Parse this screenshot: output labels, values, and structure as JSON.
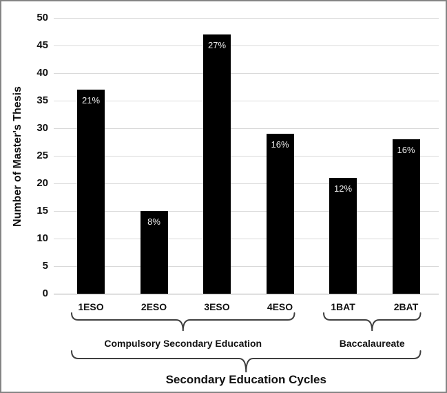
{
  "chart_data": {
    "type": "bar",
    "title": "",
    "xlabel": "",
    "ylabel": "Number of Master's Thesis",
    "ylim": [
      0,
      50
    ],
    "ytick_step": 5,
    "grid": true,
    "legend": "none",
    "bar_color": "#000000",
    "bar_label_color": "#ededed",
    "gridline_color": "#d9d9d9",
    "categories": [
      "1ESO",
      "2ESO",
      "3ESO",
      "4ESO",
      "1BAT",
      "2BAT"
    ],
    "values": [
      37,
      15,
      47,
      29,
      21,
      28
    ],
    "bar_labels": [
      "21%",
      "8%",
      "27%",
      "16%",
      "12%",
      "16%"
    ],
    "group_brackets": [
      {
        "label": "Compulsory Secondary Education",
        "from": 0,
        "to": 3
      },
      {
        "label": "Baccalaureate",
        "from": 4,
        "to": 5
      }
    ],
    "outer_bracket": {
      "label": "Secondary Education Cycles",
      "from": 0,
      "to": 5
    }
  }
}
